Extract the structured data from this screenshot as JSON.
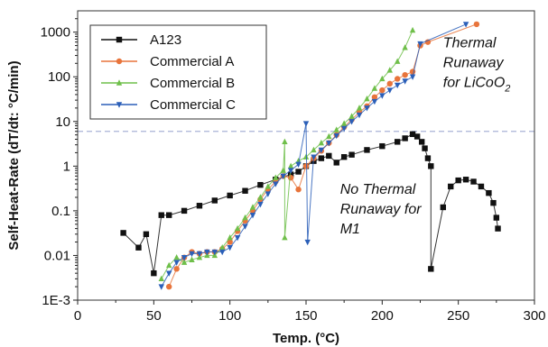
{
  "chart_data": {
    "type": "scatter",
    "xlabel": "Temp. (°C)",
    "ylabel": "Self-Heat-Rate (dT/dt: °C/min)",
    "xlim": [
      0,
      300
    ],
    "ylim": [
      0.001,
      3000
    ],
    "yscale": "log",
    "x_ticks": [
      "0",
      "50",
      "100",
      "150",
      "200",
      "250",
      "300"
    ],
    "y_ticks": [
      "1E-3",
      "0.01",
      "0.1",
      "1",
      "10",
      "100",
      "1000"
    ],
    "y_tick_values": [
      0.001,
      0.01,
      0.1,
      1,
      10,
      100,
      1000
    ],
    "x_tick_values": [
      0,
      50,
      100,
      150,
      200,
      250,
      300
    ],
    "threshold": {
      "y": 6.0,
      "color": "#a9b3d6"
    },
    "legend_position": "top-left",
    "series": [
      {
        "name": "A123",
        "color": "#111111",
        "marker": "square",
        "points": [
          [
            30,
            0.032
          ],
          [
            40,
            0.015
          ],
          [
            45,
            0.03
          ],
          [
            50,
            0.004
          ],
          [
            55,
            0.08
          ],
          [
            60,
            0.08
          ],
          [
            70,
            0.1
          ],
          [
            80,
            0.13
          ],
          [
            90,
            0.17
          ],
          [
            100,
            0.22
          ],
          [
            110,
            0.28
          ],
          [
            120,
            0.38
          ],
          [
            130,
            0.5
          ],
          [
            140,
            0.65
          ],
          [
            145,
            0.75
          ],
          [
            150,
            1.0
          ],
          [
            155,
            1.3
          ],
          [
            160,
            1.5
          ],
          [
            165,
            1.7
          ],
          [
            170,
            1.2
          ],
          [
            175,
            1.6
          ],
          [
            180,
            1.8
          ],
          [
            190,
            2.3
          ],
          [
            200,
            2.8
          ],
          [
            210,
            3.5
          ],
          [
            215,
            4.2
          ],
          [
            220,
            5.2
          ],
          [
            223,
            4.6
          ],
          [
            226,
            3.5
          ],
          [
            228,
            2.5
          ],
          [
            230,
            1.5
          ],
          [
            232,
            1.0
          ],
          [
            232,
            0.005
          ],
          [
            240,
            0.12
          ],
          [
            245,
            0.35
          ],
          [
            250,
            0.48
          ],
          [
            255,
            0.5
          ],
          [
            260,
            0.45
          ],
          [
            265,
            0.35
          ],
          [
            270,
            0.25
          ],
          [
            273,
            0.15
          ],
          [
            275,
            0.07
          ],
          [
            276,
            0.04
          ]
        ]
      },
      {
        "name": "Commercial A",
        "color": "#e8743b",
        "marker": "circle",
        "points": [
          [
            60,
            0.002
          ],
          [
            65,
            0.005
          ],
          [
            70,
            0.009
          ],
          [
            75,
            0.012
          ],
          [
            80,
            0.011
          ],
          [
            85,
            0.012
          ],
          [
            90,
            0.012
          ],
          [
            95,
            0.014
          ],
          [
            100,
            0.02
          ],
          [
            105,
            0.035
          ],
          [
            110,
            0.06
          ],
          [
            115,
            0.1
          ],
          [
            120,
            0.18
          ],
          [
            125,
            0.3
          ],
          [
            130,
            0.45
          ],
          [
            135,
            0.6
          ],
          [
            140,
            0.55
          ],
          [
            145,
            0.3
          ],
          [
            150,
            1.0
          ],
          [
            155,
            1.5
          ],
          [
            160,
            2.2
          ],
          [
            165,
            3.3
          ],
          [
            170,
            5.0
          ],
          [
            175,
            7.5
          ],
          [
            180,
            11
          ],
          [
            185,
            16
          ],
          [
            190,
            22
          ],
          [
            195,
            35
          ],
          [
            200,
            50
          ],
          [
            205,
            70
          ],
          [
            210,
            90
          ],
          [
            215,
            110
          ],
          [
            220,
            130
          ],
          [
            225,
            500
          ],
          [
            230,
            600
          ],
          [
            262,
            1500
          ]
        ]
      },
      {
        "name": "Commercial B",
        "color": "#6fbf4a",
        "marker": "triangle-up",
        "points": [
          [
            55,
            0.003
          ],
          [
            60,
            0.006
          ],
          [
            65,
            0.009
          ],
          [
            70,
            0.007
          ],
          [
            75,
            0.008
          ],
          [
            80,
            0.009
          ],
          [
            85,
            0.01
          ],
          [
            90,
            0.01
          ],
          [
            95,
            0.015
          ],
          [
            100,
            0.025
          ],
          [
            105,
            0.04
          ],
          [
            110,
            0.07
          ],
          [
            115,
            0.12
          ],
          [
            120,
            0.2
          ],
          [
            125,
            0.35
          ],
          [
            130,
            0.55
          ],
          [
            135,
            0.8
          ],
          [
            136,
            3.5
          ],
          [
            136,
            0.025
          ],
          [
            140,
            1.0
          ],
          [
            145,
            1.3
          ],
          [
            150,
            1.6
          ],
          [
            155,
            2.3
          ],
          [
            160,
            3.3
          ],
          [
            165,
            4.6
          ],
          [
            170,
            6.5
          ],
          [
            175,
            9
          ],
          [
            180,
            13
          ],
          [
            185,
            20
          ],
          [
            190,
            32
          ],
          [
            195,
            55
          ],
          [
            200,
            90
          ],
          [
            205,
            140
          ],
          [
            210,
            220
          ],
          [
            215,
            450
          ],
          [
            220,
            1100
          ]
        ]
      },
      {
        "name": "Commercial C",
        "color": "#2b5fb8",
        "marker": "triangle-down",
        "points": [
          [
            55,
            0.002
          ],
          [
            60,
            0.004
          ],
          [
            65,
            0.007
          ],
          [
            70,
            0.009
          ],
          [
            75,
            0.011
          ],
          [
            80,
            0.011
          ],
          [
            85,
            0.012
          ],
          [
            90,
            0.012
          ],
          [
            95,
            0.012
          ],
          [
            100,
            0.015
          ],
          [
            105,
            0.025
          ],
          [
            110,
            0.045
          ],
          [
            115,
            0.08
          ],
          [
            120,
            0.14
          ],
          [
            125,
            0.24
          ],
          [
            130,
            0.4
          ],
          [
            135,
            0.6
          ],
          [
            140,
            0.8
          ],
          [
            145,
            1.1
          ],
          [
            150,
            9.0
          ],
          [
            151,
            0.02
          ],
          [
            155,
            1.6
          ],
          [
            160,
            2.3
          ],
          [
            165,
            3.3
          ],
          [
            170,
            4.8
          ],
          [
            175,
            7
          ],
          [
            180,
            10
          ],
          [
            185,
            14
          ],
          [
            190,
            20
          ],
          [
            195,
            28
          ],
          [
            200,
            38
          ],
          [
            205,
            50
          ],
          [
            210,
            65
          ],
          [
            215,
            80
          ],
          [
            220,
            100
          ],
          [
            225,
            550
          ],
          [
            255,
            1500
          ]
        ]
      }
    ],
    "annotations": [
      {
        "lines": [
          "Thermal",
          "Runaway",
          "for LiCoO",
          "2"
        ],
        "x": 240,
        "y": 500
      },
      {
        "lines": [
          "No Thermal",
          "Runaway for",
          "M1"
        ],
        "x": 170,
        "y": 0.15
      }
    ]
  }
}
